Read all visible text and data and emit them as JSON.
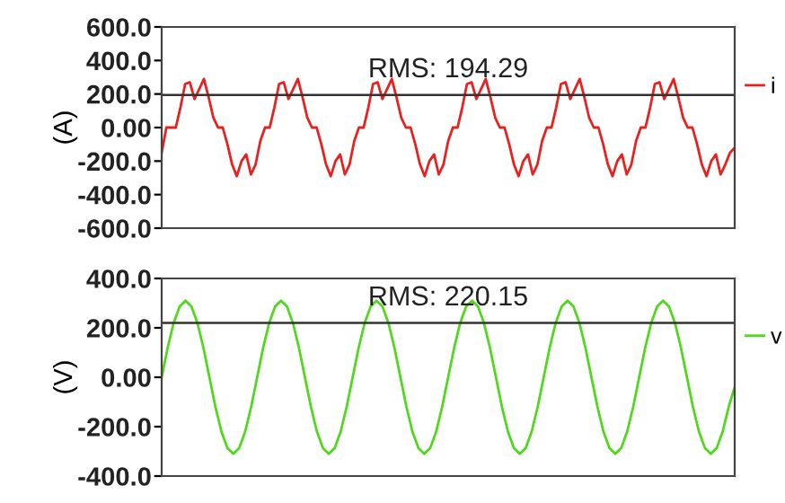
{
  "chart_data": [
    {
      "type": "line",
      "ylabel": "(A)",
      "categories": [
        null,
        null,
        null,
        null,
        null,
        null,
        null,
        null,
        null,
        null,
        null,
        null,
        null,
        null,
        null,
        null,
        null,
        null,
        null,
        null,
        null,
        null,
        null,
        null,
        null,
        null,
        null,
        null,
        null,
        null,
        null,
        null,
        null,
        null,
        null,
        null,
        null,
        null,
        null,
        null,
        null,
        null,
        null,
        null,
        null,
        null,
        null,
        null,
        null,
        null,
        null,
        null,
        null,
        null,
        null,
        null,
        null,
        null,
        null,
        null,
        null,
        null,
        null,
        null,
        null,
        null,
        null,
        null,
        null,
        null,
        null,
        null,
        null,
        null,
        null,
        null,
        null,
        null,
        null,
        null,
        null,
        null,
        null,
        null,
        null,
        null,
        null,
        null,
        null,
        null,
        null,
        null,
        null,
        null,
        null,
        null,
        null,
        null,
        null,
        null,
        null,
        null,
        null,
        null,
        null,
        null,
        null,
        null,
        null,
        null,
        null,
        null,
        null,
        null,
        null,
        null,
        null,
        null,
        null,
        null,
        null,
        null,
        null
      ],
      "series": [
        {
          "name": "i",
          "color": "#e8201e",
          "values": [
            -150,
            0,
            0,
            0,
            120,
            260,
            270,
            170,
            230,
            290,
            180,
            60,
            0,
            0,
            -100,
            -220,
            -290,
            -200,
            -160,
            -280,
            -220,
            -80,
            0,
            0,
            120,
            260,
            270,
            170,
            230,
            290,
            180,
            60,
            0,
            0,
            -100,
            -220,
            -290,
            -200,
            -160,
            -280,
            -220,
            -80,
            0,
            0,
            120,
            260,
            270,
            170,
            230,
            290,
            180,
            60,
            0,
            0,
            -100,
            -220,
            -290,
            -200,
            -160,
            -280,
            -220,
            -80,
            0,
            0,
            120,
            260,
            270,
            170,
            230,
            290,
            180,
            60,
            0,
            0,
            -100,
            -220,
            -290,
            -200,
            -160,
            -280,
            -220,
            -80,
            0,
            0,
            120,
            260,
            270,
            170,
            230,
            290,
            180,
            60,
            0,
            0,
            -100,
            -220,
            -290,
            -200,
            -160,
            -280,
            -220,
            -80,
            0,
            0,
            120,
            260,
            270,
            170,
            230,
            290,
            180,
            60,
            0,
            0,
            -100,
            -220,
            -290,
            -200,
            -160,
            -280,
            -220,
            -150,
            -120
          ]
        }
      ],
      "ylim": [
        -600,
        600
      ],
      "yticks": [
        {
          "value": 600,
          "label": "600.0"
        },
        {
          "value": 400,
          "label": "400.0"
        },
        {
          "value": 200,
          "label": "200.0"
        },
        {
          "value": 0,
          "label": "0.00"
        },
        {
          "value": -200,
          "label": "-200.0"
        },
        {
          "value": -400,
          "label": "-400.0"
        },
        {
          "value": -600,
          "label": "-600.0"
        }
      ],
      "ref_lines": [
        {
          "axis": "y",
          "value": 194.29,
          "label": "RMS: 194.29",
          "color": "#333333"
        }
      ],
      "legend": "right",
      "grid": false,
      "tick_labels": "y"
    },
    {
      "type": "line",
      "ylabel": "(V)",
      "categories": [
        null,
        null,
        null,
        null,
        null,
        null,
        null,
        null,
        null,
        null,
        null,
        null,
        null,
        null,
        null,
        null,
        null,
        null,
        null,
        null,
        null,
        null,
        null,
        null,
        null,
        null,
        null,
        null,
        null,
        null,
        null,
        null,
        null,
        null,
        null,
        null,
        null,
        null,
        null,
        null,
        null,
        null,
        null,
        null,
        null,
        null,
        null,
        null,
        null,
        null,
        null,
        null,
        null,
        null,
        null,
        null,
        null,
        null,
        null,
        null,
        null,
        null,
        null,
        null,
        null,
        null,
        null,
        null,
        null,
        null,
        null,
        null,
        null,
        null,
        null,
        null,
        null,
        null,
        null,
        null,
        null,
        null,
        null,
        null,
        null,
        null,
        null,
        null,
        null,
        null,
        null,
        null,
        null,
        null,
        null,
        null,
        null
      ],
      "series": [
        {
          "name": "v",
          "color": "#4fd81c",
          "values": [
            0,
            119,
            219,
            286,
            310,
            286,
            219,
            119,
            0,
            -119,
            -219,
            -286,
            -310,
            -286,
            -219,
            -119,
            0,
            119,
            219,
            286,
            310,
            286,
            219,
            119,
            0,
            -119,
            -219,
            -286,
            -310,
            -286,
            -219,
            -119,
            0,
            119,
            219,
            286,
            310,
            286,
            219,
            119,
            0,
            -119,
            -219,
            -286,
            -310,
            -286,
            -219,
            -119,
            0,
            119,
            219,
            286,
            310,
            286,
            219,
            119,
            0,
            -119,
            -219,
            -286,
            -310,
            -286,
            -219,
            -119,
            0,
            119,
            219,
            286,
            310,
            286,
            219,
            119,
            0,
            -119,
            -219,
            -286,
            -310,
            -286,
            -219,
            -119,
            0,
            119,
            219,
            286,
            310,
            286,
            219,
            119,
            0,
            -119,
            -219,
            -286,
            -310,
            -286,
            -219,
            -119,
            -40
          ]
        }
      ],
      "ylim": [
        -400,
        400
      ],
      "yticks": [
        {
          "value": 400,
          "label": "400.0"
        },
        {
          "value": 200,
          "label": "200.0"
        },
        {
          "value": 0,
          "label": "0.00"
        },
        {
          "value": -200,
          "label": "-200.0"
        },
        {
          "value": -400,
          "label": "-400.0"
        }
      ],
      "ref_lines": [
        {
          "axis": "y",
          "value": 220.15,
          "label": "RMS: 220.15",
          "color": "#333333"
        }
      ],
      "legend": "right",
      "grid": false,
      "tick_labels": "y"
    }
  ]
}
